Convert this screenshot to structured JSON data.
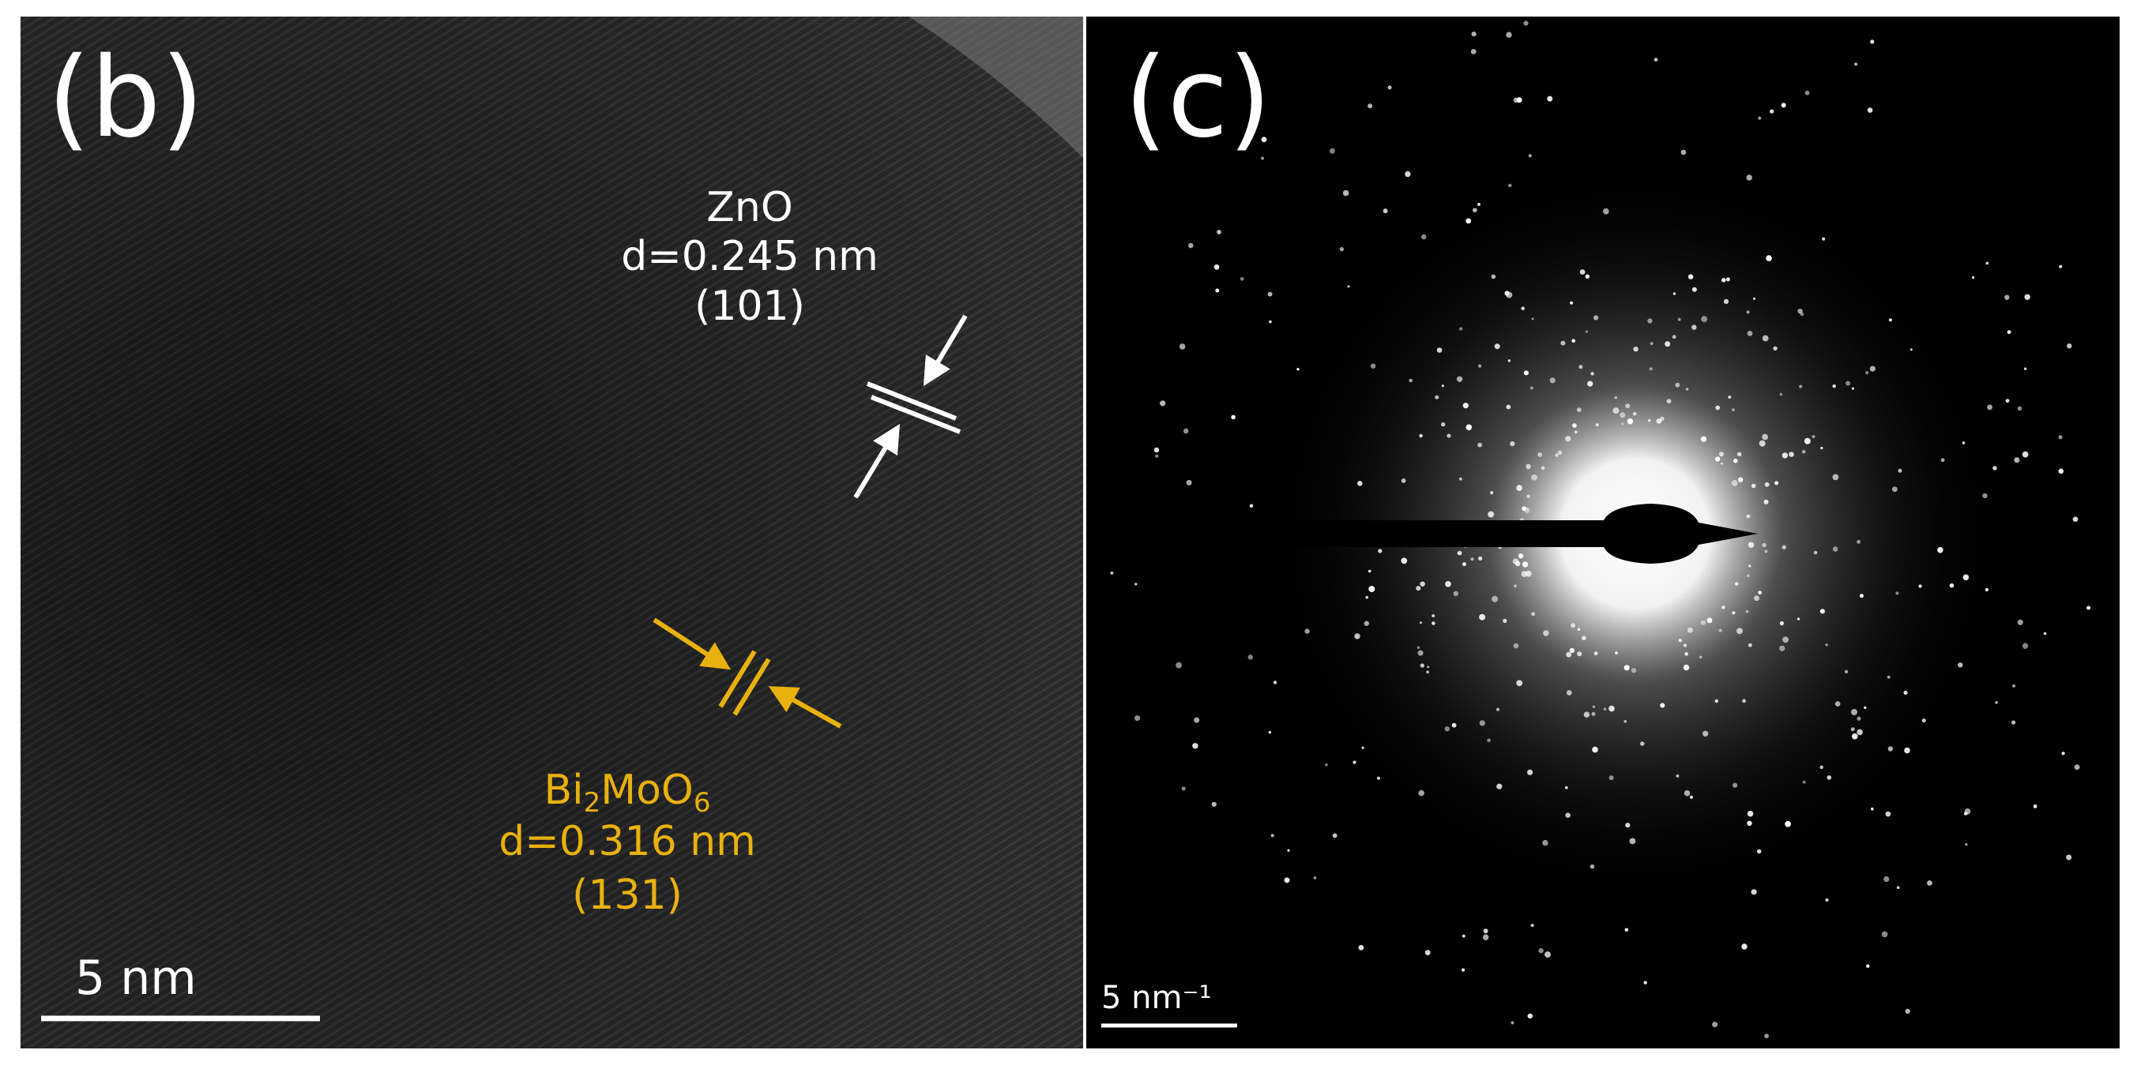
{
  "panel_b": {
    "label": "(b)",
    "zno": {
      "name": "ZnO",
      "spacing": "d=0.245 nm",
      "plane": "(101)"
    },
    "bi2moo6": {
      "name_parts": [
        "Bi",
        "2",
        "MoO",
        "6"
      ],
      "spacing": "d=0.316 nm",
      "plane": "(131)"
    },
    "scale_bar": "5 nm"
  },
  "panel_c": {
    "label": "(c)",
    "scale_bar": "5 nm⁻¹"
  }
}
